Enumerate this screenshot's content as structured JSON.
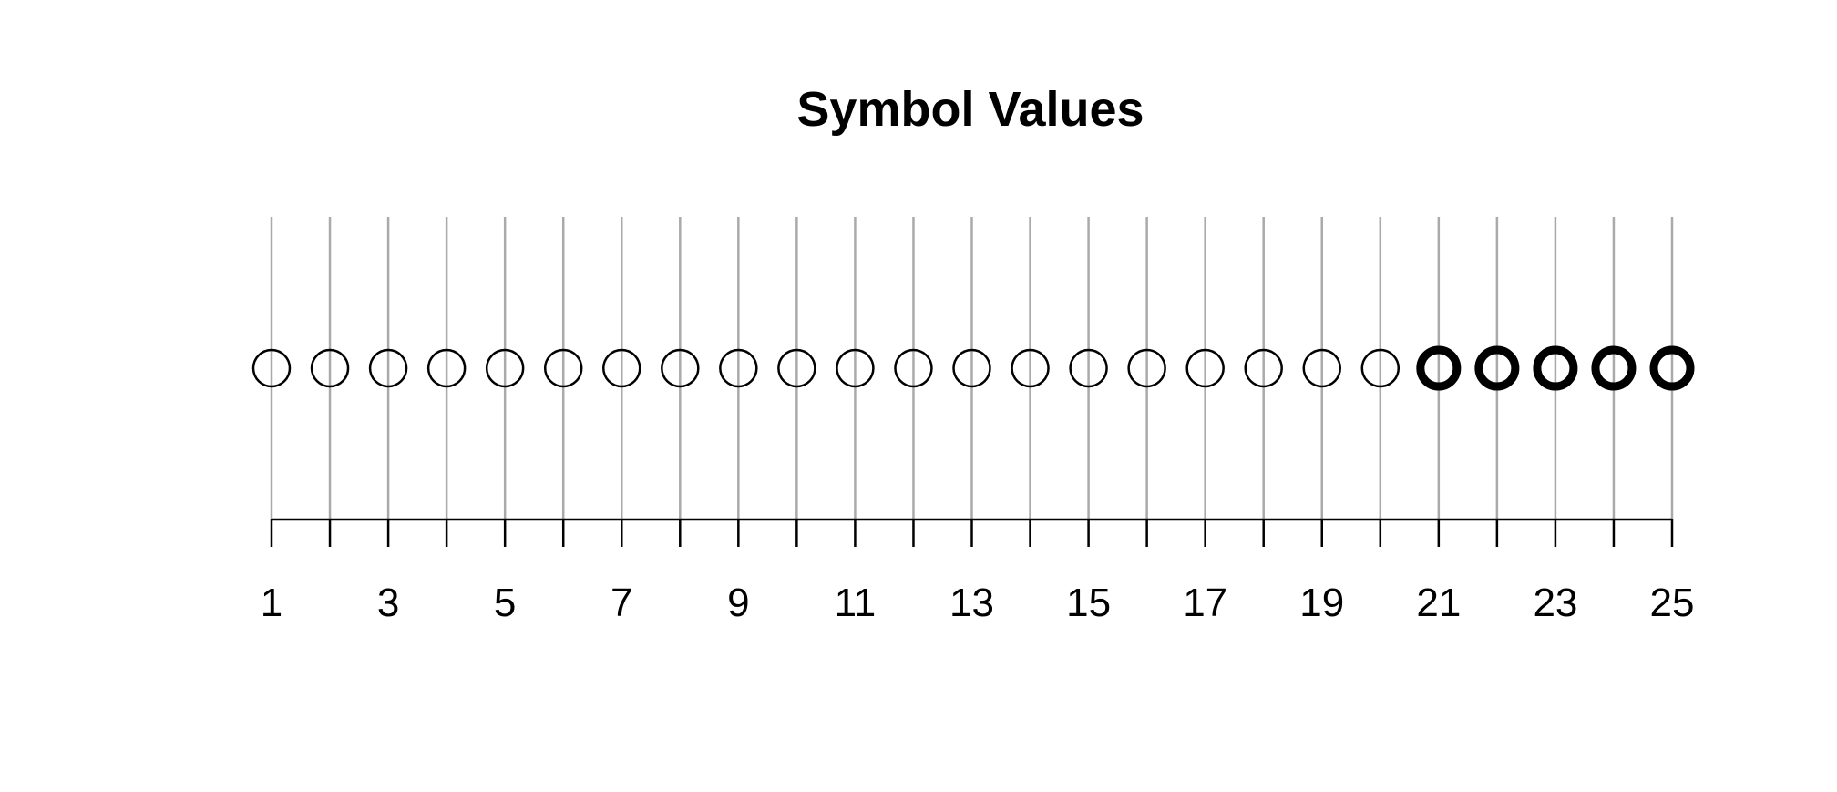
{
  "chart_data": {
    "type": "scatter",
    "title": "Symbol Values",
    "xlabel": "",
    "ylabel": "",
    "x": [
      1,
      2,
      3,
      4,
      5,
      6,
      7,
      8,
      9,
      10,
      11,
      12,
      13,
      14,
      15,
      16,
      17,
      18,
      19,
      20,
      21,
      22,
      23,
      24,
      25
    ],
    "y": [
      1,
      1,
      1,
      1,
      1,
      1,
      1,
      1,
      1,
      1,
      1,
      1,
      1,
      1,
      1,
      1,
      1,
      1,
      1,
      1,
      1,
      1,
      1,
      1,
      1
    ],
    "symbol_weight": [
      "thin",
      "thin",
      "thin",
      "thin",
      "thin",
      "thin",
      "thin",
      "thin",
      "thin",
      "thin",
      "thin",
      "thin",
      "thin",
      "thin",
      "thin",
      "thin",
      "thin",
      "thin",
      "thin",
      "thin",
      "bold",
      "bold",
      "bold",
      "bold",
      "bold"
    ],
    "xlim": [
      1,
      25
    ],
    "x_tick_labels": [
      "1",
      "3",
      "5",
      "7",
      "9",
      "11",
      "13",
      "15",
      "17",
      "19",
      "21",
      "23",
      "25"
    ],
    "grid": "vertical",
    "legend": "none",
    "colors": {
      "marker": "#000000",
      "gridline": "#aaaaaa",
      "axis": "#000000",
      "background": "#ffffff"
    }
  }
}
